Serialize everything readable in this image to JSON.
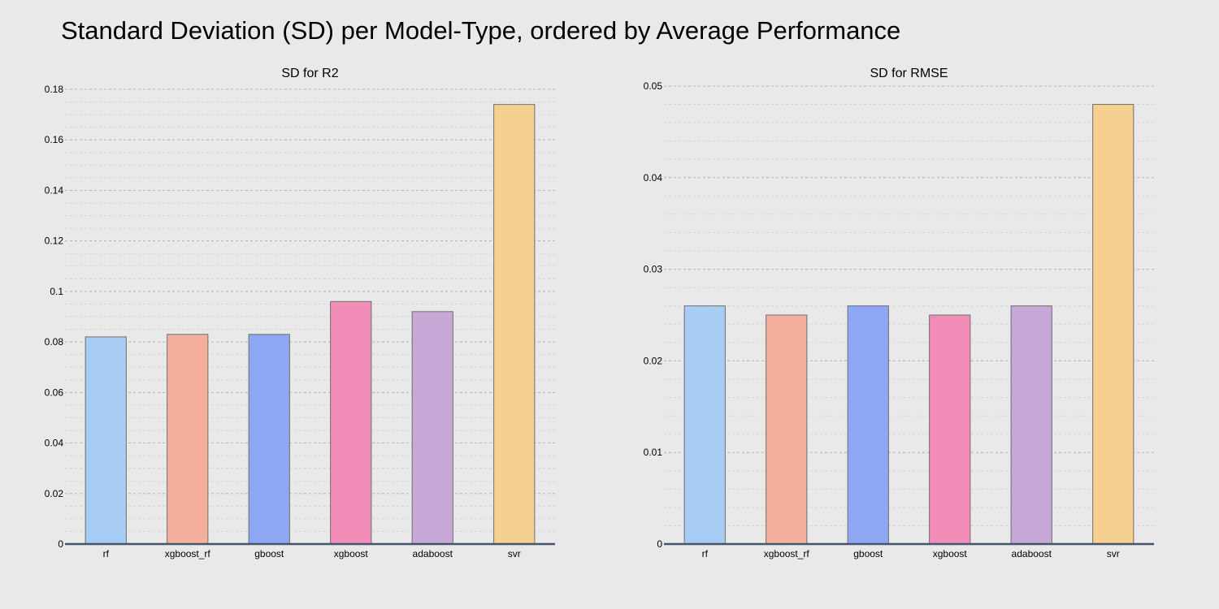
{
  "title": "Standard Deviation (SD) per Model-Type, ordered by Average Performance",
  "chart_data": [
    {
      "type": "bar",
      "title": "SD for R2",
      "categories": [
        "rf",
        "xgboost_rf",
        "gboost",
        "xgboost",
        "adaboost",
        "svr"
      ],
      "values": [
        0.082,
        0.083,
        0.083,
        0.096,
        0.092,
        0.174
      ],
      "colors": [
        "#a8cdf5",
        "#f4b09c",
        "#8ea7f5",
        "#f28db8",
        "#c8a8d6",
        "#f5d08e"
      ],
      "ylim": [
        0,
        0.18
      ],
      "yticks": [
        0,
        0.02,
        0.04,
        0.06,
        0.08,
        0.1,
        0.12,
        0.14,
        0.16,
        0.18
      ],
      "ytick_labels": [
        "0",
        "0.02",
        "0.04",
        "0.06",
        "0.08",
        "0.1",
        "0.12",
        "0.14",
        "0.16",
        "0.18"
      ],
      "minor_per_major": 4,
      "grid": true
    },
    {
      "type": "bar",
      "title": "SD for RMSE",
      "categories": [
        "rf",
        "xgboost_rf",
        "gboost",
        "xgboost",
        "adaboost",
        "svr"
      ],
      "values": [
        0.026,
        0.025,
        0.026,
        0.025,
        0.026,
        0.048
      ],
      "colors": [
        "#a8cdf5",
        "#f4b09c",
        "#8ea7f5",
        "#f28db8",
        "#c8a8d6",
        "#f5d08e"
      ],
      "ylim": [
        0,
        0.05
      ],
      "yticks": [
        0,
        0.01,
        0.02,
        0.03,
        0.04,
        0.05
      ],
      "ytick_labels": [
        "0",
        "0.01",
        "0.02",
        "0.03",
        "0.04",
        "0.05"
      ],
      "minor_per_major": 5,
      "grid": true
    }
  ]
}
